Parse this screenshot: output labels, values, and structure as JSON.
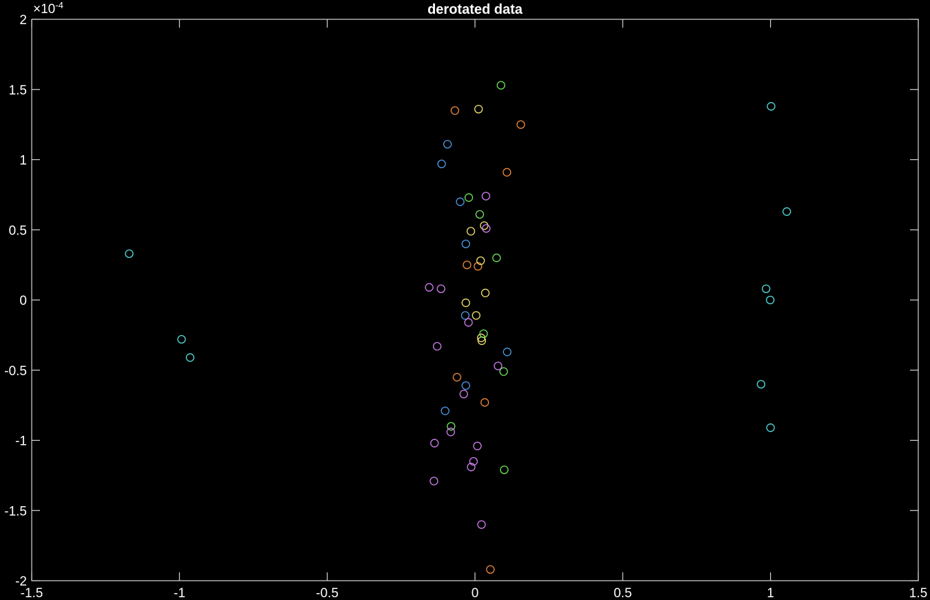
{
  "chart_data": {
    "type": "scatter",
    "title": "derotated data",
    "xlabel": "",
    "ylabel": "",
    "xlim": [
      -1.5,
      1.5
    ],
    "ylim": [
      -2,
      2
    ],
    "y_exponent_label": "×10",
    "y_exponent_power": "-4",
    "x_ticks": [
      -1.5,
      -1,
      -0.5,
      0,
      0.5,
      1,
      1.5
    ],
    "x_tick_labels": [
      "-1.5",
      "-1",
      "-0.5",
      "0",
      "0.5",
      "1",
      "1.5"
    ],
    "y_ticks": [
      -2,
      -1.5,
      -1,
      -0.5,
      0,
      0.5,
      1,
      1.5,
      2
    ],
    "y_tick_labels": [
      "-2",
      "-1.5",
      "-1",
      "-0.5",
      "0",
      "0.5",
      "1",
      "1.5",
      "2"
    ],
    "grid": false,
    "background": "#121212",
    "axis_color": "#d8d8d8",
    "series": [
      {
        "color": "#52dede",
        "x": [
          -1.17,
          -0.993,
          -0.964,
          1.002,
          1.055,
          0.985,
          0.999,
          0.968,
          1.0
        ],
        "y": [
          0.33,
          -0.28,
          -0.41,
          1.38,
          0.63,
          0.08,
          0.0,
          -0.6,
          -0.91
        ]
      },
      {
        "color": "#4d9be6",
        "x": [
          -0.093,
          -0.113,
          -0.05,
          -0.031,
          -0.033,
          0.109,
          -0.031,
          -0.101
        ],
        "y": [
          1.11,
          0.97,
          0.7,
          0.4,
          -0.11,
          -0.37,
          -0.61,
          -0.79
        ]
      },
      {
        "color": "#ef8a3c",
        "x": [
          -0.068,
          0.155,
          0.108,
          -0.027,
          0.01,
          -0.061,
          0.033,
          0.052
        ],
        "y": [
          1.35,
          1.25,
          0.91,
          0.25,
          0.24,
          -0.55,
          -0.73,
          -1.92
        ]
      },
      {
        "color": "#f2e274",
        "x": [
          0.012,
          -0.014,
          0.031,
          0.019,
          0.035,
          -0.031,
          0.004,
          0.021,
          0.023
        ],
        "y": [
          1.36,
          0.49,
          0.53,
          0.28,
          0.05,
          -0.02,
          -0.11,
          -0.27,
          -0.29
        ]
      },
      {
        "color": "#6ee65a",
        "x": [
          0.088,
          -0.021,
          0.016,
          0.073,
          0.029,
          0.097,
          -0.081,
          0.099
        ],
        "y": [
          1.53,
          0.73,
          0.61,
          0.3,
          -0.24,
          -0.51,
          -0.9,
          -1.21
        ]
      },
      {
        "color": "#cf7fef",
        "x": [
          0.037,
          0.038,
          -0.155,
          -0.115,
          -0.022,
          -0.128,
          0.078,
          -0.038,
          -0.082,
          -0.137,
          0.008,
          -0.005,
          -0.013,
          -0.139,
          0.022
        ],
        "y": [
          0.74,
          0.51,
          0.09,
          0.08,
          -0.16,
          -0.33,
          -0.47,
          -0.67,
          -0.94,
          -1.02,
          -1.04,
          -1.15,
          -1.19,
          -1.29,
          -1.6
        ]
      }
    ]
  }
}
